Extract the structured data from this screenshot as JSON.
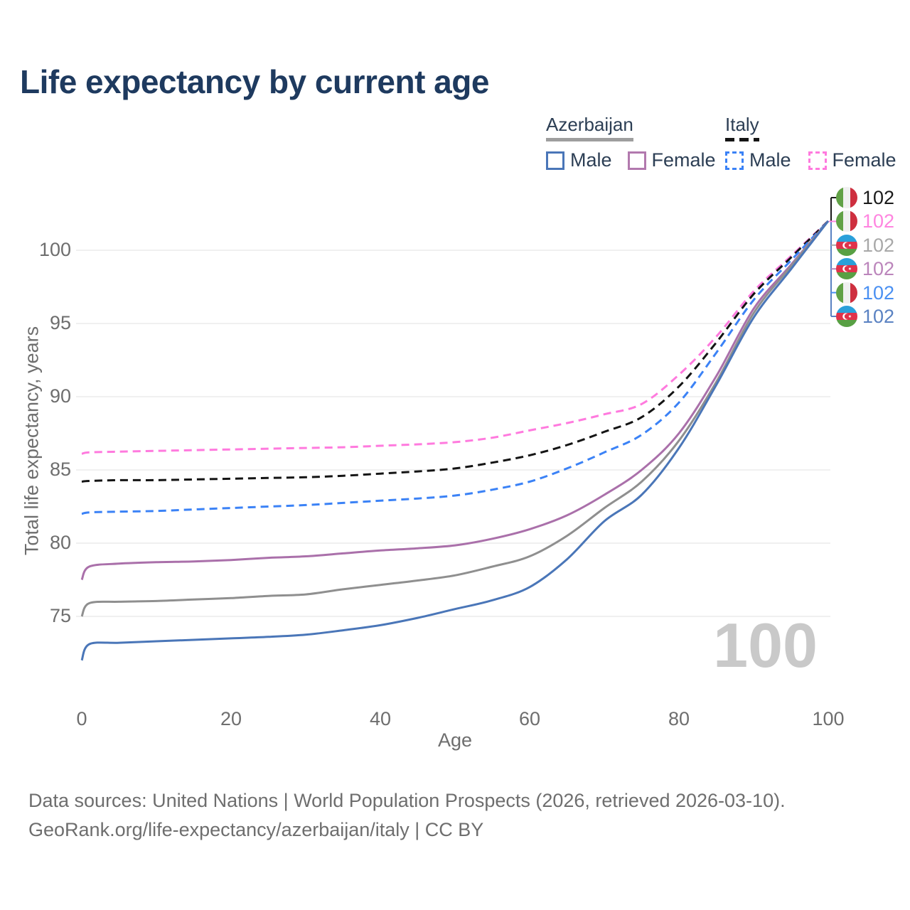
{
  "header": {
    "title": "Life expectancy by current age"
  },
  "legend": {
    "groups": [
      {
        "name": "Azerbaijan",
        "line_style": "solid",
        "underline_color": "#9e9e9e",
        "items": [
          {
            "label": "Male",
            "color": "#4a76b8"
          },
          {
            "label": "Female",
            "color": "#b279ae"
          }
        ]
      },
      {
        "name": "Italy",
        "line_style": "dashed",
        "underline_color": "#141414",
        "items": [
          {
            "label": "Male",
            "color": "#3b82f6"
          },
          {
            "label": "Female",
            "color": "#ff7ade"
          }
        ]
      }
    ]
  },
  "axes": {
    "x": {
      "title": "Age",
      "range": [
        0,
        100
      ]
    },
    "y": {
      "title": "Total life expectancy, years",
      "range": [
        71,
        103
      ]
    }
  },
  "watermark": {
    "value": "100"
  },
  "endpoints": [
    {
      "flag": "italy",
      "series": "Italy",
      "value": "102",
      "color": "#1a1a1a"
    },
    {
      "flag": "italy",
      "series": "Italy Female",
      "value": "102",
      "color": "#ff85e0"
    },
    {
      "flag": "azerbaijan",
      "series": "Azerbaijan",
      "value": "102",
      "color": "#a8a8a8"
    },
    {
      "flag": "azerbaijan",
      "series": "Azerbaijan Female",
      "value": "102",
      "color": "#bb85bb"
    },
    {
      "flag": "italy",
      "series": "Italy Male",
      "value": "102",
      "color": "#4a90f2"
    },
    {
      "flag": "azerbaijan",
      "series": "Azerbaijan Male",
      "value": "102",
      "color": "#5a82c2"
    }
  ],
  "footer": {
    "line1": "Data sources: United Nations | World Population Prospects (2026, retrieved 2026-03-10).",
    "line2": "GeoRank.org/life-expectancy/azerbaijan/italy | CC BY"
  },
  "chart_data": {
    "type": "line",
    "title": "Life expectancy by current age",
    "xlabel": "Age",
    "ylabel": "Total life expectancy, years",
    "x_ticks": [
      0,
      20,
      40,
      60,
      80,
      100
    ],
    "y_ticks": [
      75,
      80,
      85,
      90,
      95,
      100
    ],
    "xlim": [
      0,
      100
    ],
    "ylim": [
      71,
      103
    ],
    "grid": "horizontal",
    "legend_position": "top-right",
    "ages": [
      0,
      1,
      5,
      10,
      15,
      20,
      25,
      30,
      35,
      40,
      45,
      50,
      55,
      60,
      65,
      70,
      75,
      80,
      85,
      90,
      95,
      100
    ],
    "series": [
      {
        "id": "italy_female",
        "name": "Italy Female",
        "style": "dashed",
        "color": "#ff7ade",
        "values": [
          86.1,
          86.2,
          86.25,
          86.3,
          86.35,
          86.4,
          86.45,
          86.5,
          86.55,
          86.65,
          86.75,
          86.9,
          87.2,
          87.7,
          88.2,
          88.8,
          89.5,
          91.5,
          94.1,
          97.2,
          99.6,
          102
        ]
      },
      {
        "id": "italy_total",
        "name": "Italy",
        "style": "dashed",
        "color": "#141414",
        "values": [
          84.2,
          84.25,
          84.3,
          84.3,
          84.35,
          84.4,
          84.45,
          84.5,
          84.6,
          84.75,
          84.9,
          85.1,
          85.5,
          86.0,
          86.7,
          87.6,
          88.6,
          90.7,
          93.7,
          97.0,
          99.5,
          102
        ]
      },
      {
        "id": "italy_male",
        "name": "Italy Male",
        "style": "dashed",
        "color": "#3b82f6",
        "values": [
          82.0,
          82.1,
          82.15,
          82.2,
          82.3,
          82.4,
          82.5,
          82.6,
          82.75,
          82.9,
          83.05,
          83.25,
          83.65,
          84.2,
          85.1,
          86.2,
          87.4,
          89.6,
          93.0,
          96.6,
          99.3,
          102
        ]
      },
      {
        "id": "azerbaijan_female",
        "name": "Azerbaijan Female",
        "style": "solid",
        "color": "#aa70aa",
        "values": [
          77.5,
          78.4,
          78.6,
          78.7,
          78.75,
          78.85,
          79.0,
          79.1,
          79.3,
          79.5,
          79.65,
          79.85,
          80.3,
          80.95,
          81.9,
          83.3,
          85.0,
          87.5,
          91.4,
          96.0,
          99.0,
          102
        ]
      },
      {
        "id": "azerbaijan_total",
        "name": "Azerbaijan",
        "style": "solid",
        "color": "#8f8f8f",
        "values": [
          75.0,
          75.9,
          76.0,
          76.05,
          76.15,
          76.25,
          76.4,
          76.5,
          76.85,
          77.15,
          77.45,
          77.8,
          78.4,
          79.1,
          80.5,
          82.4,
          84.2,
          87.0,
          91.0,
          95.7,
          98.9,
          102
        ]
      },
      {
        "id": "azerbaijan_male",
        "name": "Azerbaijan Male",
        "style": "solid",
        "color": "#4a76b8",
        "values": [
          72.0,
          73.1,
          73.2,
          73.3,
          73.4,
          73.5,
          73.6,
          73.75,
          74.05,
          74.4,
          74.9,
          75.5,
          76.1,
          77.0,
          78.9,
          81.5,
          83.3,
          86.5,
          90.8,
          95.4,
          98.7,
          102
        ]
      }
    ],
    "end_age": 100,
    "end_value_label": "102"
  }
}
